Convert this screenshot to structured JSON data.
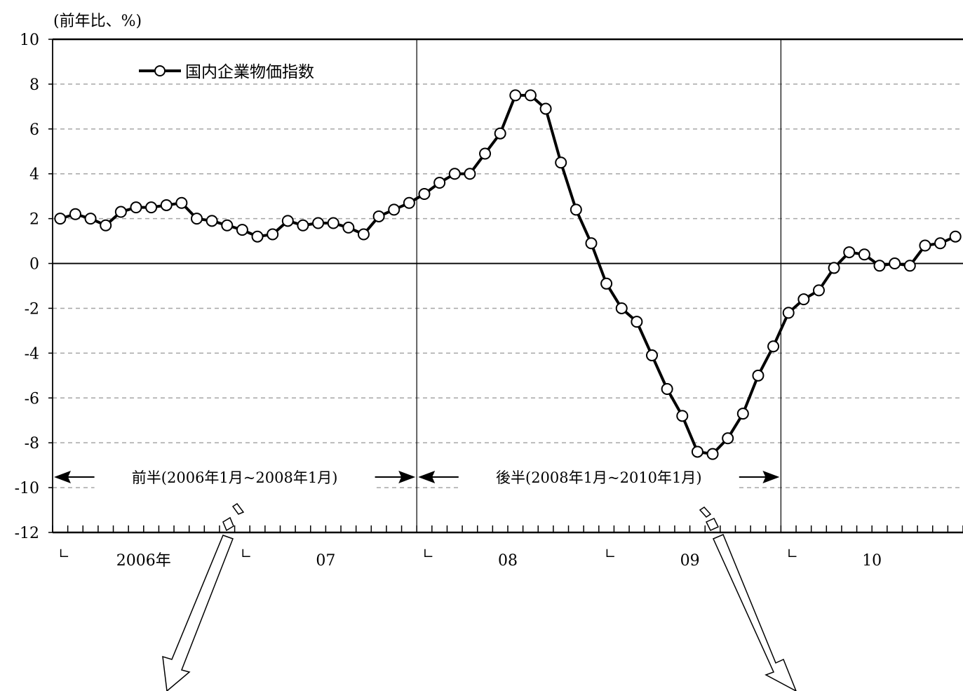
{
  "chart_data": {
    "type": "line",
    "ylabel": "(前年比、%)",
    "ylim": [
      -12,
      10
    ],
    "yticks": [
      "10",
      "8",
      "6",
      "4",
      "2",
      "0",
      "-2",
      "-4",
      "-6",
      "-8",
      "-10",
      "-12"
    ],
    "x_start": "2006-01",
    "x_end": "2010-12",
    "x_year_labels": [
      "2006年",
      "07",
      "08",
      "09",
      "10"
    ],
    "year_start_marker": "∟",
    "grid": "horizontal dashed",
    "legend_position": "top-left",
    "series": [
      {
        "name": "国内企業物価指数",
        "color": "#000000",
        "marker": "open-circle",
        "values": [
          2.0,
          2.2,
          2.0,
          1.7,
          2.3,
          2.5,
          2.5,
          2.6,
          2.7,
          2.0,
          1.9,
          1.7,
          1.5,
          1.2,
          1.3,
          1.9,
          1.7,
          1.8,
          1.8,
          1.6,
          1.3,
          2.1,
          2.4,
          2.7,
          3.1,
          3.6,
          4.0,
          4.0,
          4.9,
          5.8,
          7.5,
          7.5,
          6.9,
          4.5,
          2.4,
          0.9,
          -0.9,
          -2.0,
          -2.6,
          -4.1,
          -5.6,
          -6.8,
          -8.4,
          -8.5,
          -7.8,
          -6.7,
          -5.0,
          -3.7,
          -2.2,
          -1.6,
          -1.2,
          -0.2,
          0.5,
          0.4,
          -0.1,
          0.0,
          -0.1,
          0.8,
          0.9,
          1.2
        ]
      }
    ],
    "periods": [
      {
        "label": "前半(2006年1月~2008年1月)",
        "from": "2006-01",
        "to": "2008-01"
      },
      {
        "label": "後半(2008年1月~2010年1月)",
        "from": "2008-01",
        "to": "2010-01"
      }
    ],
    "vlines": [
      "2008-01",
      "2010-01"
    ]
  }
}
